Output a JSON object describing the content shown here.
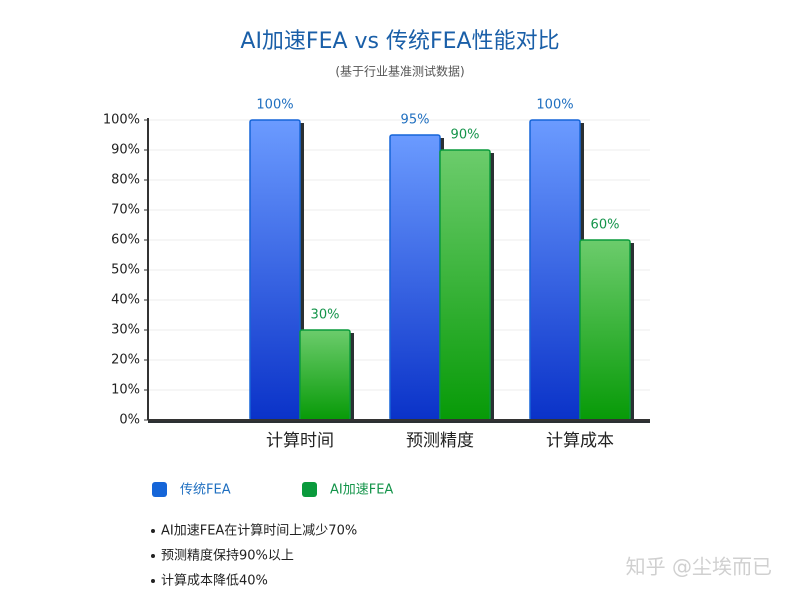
{
  "chart_data": {
    "type": "bar",
    "title": "AI加速FEA vs 传统FEA性能对比",
    "subtitle": "(基于行业基准测试数据)",
    "categories": [
      "计算时间",
      "预测精度",
      "计算成本"
    ],
    "series": [
      {
        "name": "传统FEA",
        "color": "#1565d8",
        "values": [
          100,
          95,
          100
        ],
        "value_labels": [
          "100%",
          "95%",
          "100%"
        ]
      },
      {
        "name": "AI加速FEA",
        "color": "#0a9a3c",
        "values": [
          30,
          90,
          60
        ],
        "value_labels": [
          "30%",
          "90%",
          "60%"
        ]
      }
    ],
    "ylim": [
      0,
      100
    ],
    "yticks": [
      {
        "value": 0,
        "label": "0%"
      },
      {
        "value": 10,
        "label": "10%"
      },
      {
        "value": 20,
        "label": "20%"
      },
      {
        "value": 30,
        "label": "30%"
      },
      {
        "value": 40,
        "label": "40%"
      },
      {
        "value": 50,
        "label": "50%"
      },
      {
        "value": 60,
        "label": "60%"
      },
      {
        "value": 70,
        "label": "70%"
      },
      {
        "value": 80,
        "label": "80%"
      },
      {
        "value": 90,
        "label": "90%"
      },
      {
        "value": 100,
        "label": "100%"
      }
    ],
    "grid": true,
    "notes": [
      "AI加速FEA在计算时间上减少70%",
      "预测精度保持90%以上",
      "计算成本降低40%"
    ],
    "watermark": "知乎 @尘埃而已"
  }
}
